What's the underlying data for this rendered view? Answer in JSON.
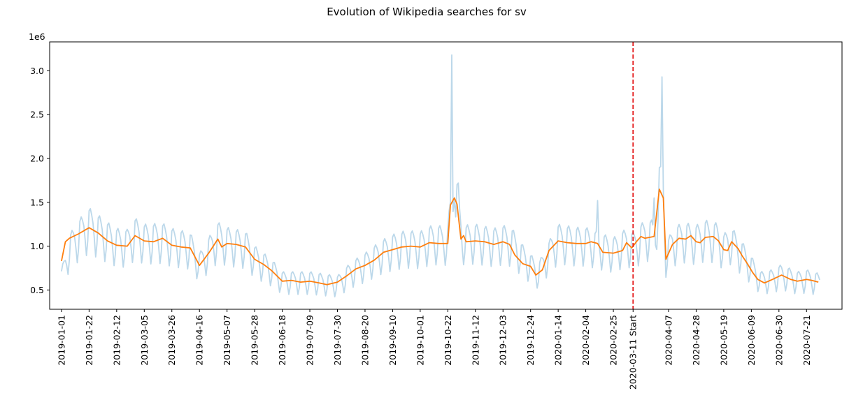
{
  "chart_data": {
    "type": "line",
    "title": "Evolution of Wikipedia searches for sv",
    "xlabel": "",
    "ylabel": "",
    "y_offset_label": "1e6",
    "x_range": [
      "2018-12-23",
      "2020-08-17"
    ],
    "ylim": [
      0.28,
      3.33
    ],
    "y_ticks": [
      0.5,
      1.0,
      1.5,
      2.0,
      2.5,
      3.0
    ],
    "y_tick_labels": [
      "0.5",
      "1.0",
      "1.5",
      "2.0",
      "2.5",
      "3.0"
    ],
    "x_ticks": [
      "2019-01-01",
      "2019-01-22",
      "2019-02-12",
      "2019-03-05",
      "2019-03-26",
      "2019-04-16",
      "2019-05-07",
      "2019-05-28",
      "2019-06-18",
      "2019-07-09",
      "2019-07-30",
      "2019-08-20",
      "2019-09-10",
      "2019-10-01",
      "2019-10-22",
      "2019-11-12",
      "2019-12-03",
      "2019-12-24",
      "2020-01-14",
      "2020-02-04",
      "2020-02-25",
      "2020-03-11",
      "2020-04-07",
      "2020-04-28",
      "2020-05-19",
      "2020-06-09",
      "2020-06-30",
      "2020-07-21"
    ],
    "x_tick_labels": [
      "2019-01-01",
      "2019-01-22",
      "2019-02-12",
      "2019-03-05",
      "2019-03-26",
      "2019-04-16",
      "2019-05-07",
      "2019-05-28",
      "2019-06-18",
      "2019-07-09",
      "2019-07-30",
      "2019-08-20",
      "2019-09-10",
      "2019-10-01",
      "2019-10-22",
      "2019-11-12",
      "2019-12-03",
      "2019-12-24",
      "2020-01-14",
      "2020-02-04",
      "2020-02-25",
      "2020-03-11 Start",
      "2020-04-07",
      "2020-04-28",
      "2020-05-19",
      "2020-06-09",
      "2020-06-30",
      "2020-07-21"
    ],
    "grid": false,
    "marker": {
      "x": "2020-03-11",
      "color": "#e41a1c",
      "style": "dashed"
    },
    "series": [
      {
        "color": "#a6cbe3",
        "alpha": 0.75,
        "style": "daily",
        "start": "2019-01-01",
        "weekly_pattern": [
          1.15,
          1.18,
          1.13,
          1.06,
          0.92,
          0.75,
          0.88
        ],
        "points": [
          [
            "2019-01-01",
            0.62
          ],
          [
            "2019-01-07",
            0.96
          ],
          [
            "2019-01-14",
            1.1
          ],
          [
            "2019-01-22",
            1.22
          ],
          [
            "2019-02-05",
            1.08
          ],
          [
            "2019-02-12",
            1.02
          ],
          [
            "2019-02-20",
            1.01
          ],
          [
            "2019-02-26",
            1.12
          ],
          [
            "2019-03-05",
            1.06
          ],
          [
            "2019-03-19",
            1.07
          ],
          [
            "2019-03-26",
            1.02
          ],
          [
            "2019-04-09",
            0.98
          ],
          [
            "2019-04-16",
            0.78
          ],
          [
            "2019-04-30",
            1.08
          ],
          [
            "2019-05-07",
            1.03
          ],
          [
            "2019-05-21",
            0.99
          ],
          [
            "2019-05-28",
            0.85
          ],
          [
            "2019-06-04",
            0.78
          ],
          [
            "2019-06-10",
            0.72
          ],
          [
            "2019-06-18",
            0.6
          ],
          [
            "2019-07-09",
            0.6
          ],
          [
            "2019-07-30",
            0.56
          ],
          [
            "2019-08-10",
            0.7
          ],
          [
            "2019-08-20",
            0.78
          ],
          [
            "2019-09-01",
            0.9
          ],
          [
            "2019-09-10",
            0.96
          ],
          [
            "2019-09-20",
            1.0
          ],
          [
            "2019-10-01",
            0.99
          ],
          [
            "2019-10-10",
            1.05
          ],
          [
            "2019-10-22",
            1.04
          ],
          [
            "2019-10-25",
            1.48
          ],
          [
            "2019-10-27",
            1.55
          ],
          [
            "2019-10-29",
            1.48
          ],
          [
            "2019-11-02",
            1.05
          ],
          [
            "2019-11-12",
            1.06
          ],
          [
            "2019-11-26",
            1.02
          ],
          [
            "2019-12-03",
            1.05
          ],
          [
            "2019-12-10",
            1.02
          ],
          [
            "2019-12-18",
            0.86
          ],
          [
            "2019-12-24",
            0.77
          ],
          [
            "2019-12-30",
            0.68
          ],
          [
            "2020-01-05",
            0.85
          ],
          [
            "2020-01-14",
            1.06
          ],
          [
            "2020-01-28",
            1.03
          ],
          [
            "2020-02-04",
            1.03
          ],
          [
            "2020-02-18",
            0.96
          ],
          [
            "2020-02-25",
            0.93
          ],
          [
            "2020-03-06",
            1.02
          ],
          [
            "2020-03-11",
            0.98
          ],
          [
            "2020-03-20",
            1.1
          ],
          [
            "2020-03-28",
            1.1
          ],
          [
            "2020-03-31",
            1.65
          ],
          [
            "2020-04-03",
            1.55
          ],
          [
            "2020-04-05",
            0.86
          ],
          [
            "2020-04-10",
            1.02
          ],
          [
            "2020-04-18",
            1.08
          ],
          [
            "2020-04-28",
            1.05
          ],
          [
            "2020-05-05",
            1.1
          ],
          [
            "2020-05-14",
            1.07
          ],
          [
            "2020-05-19",
            0.96
          ],
          [
            "2020-05-24",
            1.05
          ],
          [
            "2020-06-02",
            0.89
          ],
          [
            "2020-06-09",
            0.75
          ],
          [
            "2020-06-16",
            0.6
          ],
          [
            "2020-06-25",
            0.62
          ],
          [
            "2020-07-02",
            0.67
          ],
          [
            "2020-07-14",
            0.6
          ],
          [
            "2020-07-21",
            0.62
          ],
          [
            "2020-07-31",
            0.58
          ]
        ],
        "spikes": [
          [
            "2019-10-25",
            3.18
          ],
          [
            "2019-10-27",
            1.52
          ],
          [
            "2019-10-30",
            1.72
          ],
          [
            "2020-02-13",
            1.52
          ],
          [
            "2020-03-27",
            1.55
          ],
          [
            "2020-04-02",
            2.93
          ]
        ]
      },
      {
        "color": "#ff7f0e",
        "style": "smooth",
        "points": [
          [
            "2019-01-01",
            0.83
          ],
          [
            "2019-01-04",
            1.05
          ],
          [
            "2019-01-07",
            1.09
          ],
          [
            "2019-01-14",
            1.14
          ],
          [
            "2019-01-22",
            1.21
          ],
          [
            "2019-01-29",
            1.15
          ],
          [
            "2019-02-05",
            1.06
          ],
          [
            "2019-02-12",
            1.01
          ],
          [
            "2019-02-20",
            1.0
          ],
          [
            "2019-02-26",
            1.12
          ],
          [
            "2019-03-05",
            1.06
          ],
          [
            "2019-03-12",
            1.05
          ],
          [
            "2019-03-19",
            1.09
          ],
          [
            "2019-03-26",
            1.01
          ],
          [
            "2019-04-02",
            0.99
          ],
          [
            "2019-04-09",
            0.98
          ],
          [
            "2019-04-16",
            0.78
          ],
          [
            "2019-04-23",
            0.92
          ],
          [
            "2019-04-30",
            1.08
          ],
          [
            "2019-05-03",
            0.99
          ],
          [
            "2019-05-07",
            1.03
          ],
          [
            "2019-05-14",
            1.02
          ],
          [
            "2019-05-21",
            0.99
          ],
          [
            "2019-05-28",
            0.85
          ],
          [
            "2019-06-04",
            0.79
          ],
          [
            "2019-06-10",
            0.72
          ],
          [
            "2019-06-18",
            0.6
          ],
          [
            "2019-06-25",
            0.61
          ],
          [
            "2019-07-02",
            0.59
          ],
          [
            "2019-07-09",
            0.6
          ],
          [
            "2019-07-16",
            0.58
          ],
          [
            "2019-07-22",
            0.56
          ],
          [
            "2019-07-30",
            0.59
          ],
          [
            "2019-08-06",
            0.66
          ],
          [
            "2019-08-13",
            0.74
          ],
          [
            "2019-08-20",
            0.78
          ],
          [
            "2019-08-27",
            0.84
          ],
          [
            "2019-09-03",
            0.93
          ],
          [
            "2019-09-10",
            0.96
          ],
          [
            "2019-09-17",
            0.99
          ],
          [
            "2019-09-24",
            1.0
          ],
          [
            "2019-10-01",
            0.99
          ],
          [
            "2019-10-08",
            1.04
          ],
          [
            "2019-10-15",
            1.03
          ],
          [
            "2019-10-22",
            1.03
          ],
          [
            "2019-10-24",
            1.47
          ],
          [
            "2019-10-27",
            1.55
          ],
          [
            "2019-10-29",
            1.48
          ],
          [
            "2019-11-01",
            1.08
          ],
          [
            "2019-11-03",
            1.12
          ],
          [
            "2019-11-05",
            1.05
          ],
          [
            "2019-11-12",
            1.06
          ],
          [
            "2019-11-19",
            1.05
          ],
          [
            "2019-11-26",
            1.02
          ],
          [
            "2019-12-03",
            1.05
          ],
          [
            "2019-12-08",
            1.02
          ],
          [
            "2019-12-12",
            0.9
          ],
          [
            "2019-12-18",
            0.8
          ],
          [
            "2019-12-24",
            0.77
          ],
          [
            "2019-12-28",
            0.67
          ],
          [
            "2020-01-02",
            0.73
          ],
          [
            "2020-01-07",
            0.95
          ],
          [
            "2020-01-14",
            1.06
          ],
          [
            "2020-01-21",
            1.04
          ],
          [
            "2020-01-28",
            1.03
          ],
          [
            "2020-02-04",
            1.03
          ],
          [
            "2020-02-08",
            1.05
          ],
          [
            "2020-02-13",
            1.03
          ],
          [
            "2020-02-17",
            0.93
          ],
          [
            "2020-02-25",
            0.92
          ],
          [
            "2020-03-03",
            0.95
          ],
          [
            "2020-03-06",
            1.04
          ],
          [
            "2020-03-10",
            0.98
          ],
          [
            "2020-03-14",
            1.06
          ],
          [
            "2020-03-17",
            1.11
          ],
          [
            "2020-03-20",
            1.09
          ],
          [
            "2020-03-27",
            1.11
          ],
          [
            "2020-03-31",
            1.65
          ],
          [
            "2020-04-03",
            1.55
          ],
          [
            "2020-04-05",
            0.85
          ],
          [
            "2020-04-10",
            1.02
          ],
          [
            "2020-04-15",
            1.09
          ],
          [
            "2020-04-20",
            1.08
          ],
          [
            "2020-04-24",
            1.12
          ],
          [
            "2020-04-28",
            1.05
          ],
          [
            "2020-05-01",
            1.04
          ],
          [
            "2020-05-05",
            1.1
          ],
          [
            "2020-05-11",
            1.11
          ],
          [
            "2020-05-15",
            1.06
          ],
          [
            "2020-05-19",
            0.96
          ],
          [
            "2020-05-22",
            0.95
          ],
          [
            "2020-05-25",
            1.05
          ],
          [
            "2020-05-30",
            0.97
          ],
          [
            "2020-06-02",
            0.89
          ],
          [
            "2020-06-06",
            0.8
          ],
          [
            "2020-06-10",
            0.7
          ],
          [
            "2020-06-14",
            0.62
          ],
          [
            "2020-06-19",
            0.58
          ],
          [
            "2020-06-25",
            0.62
          ],
          [
            "2020-07-02",
            0.67
          ],
          [
            "2020-07-09",
            0.62
          ],
          [
            "2020-07-14",
            0.6
          ],
          [
            "2020-07-21",
            0.62
          ],
          [
            "2020-07-25",
            0.61
          ],
          [
            "2020-07-30",
            0.59
          ]
        ]
      }
    ]
  }
}
